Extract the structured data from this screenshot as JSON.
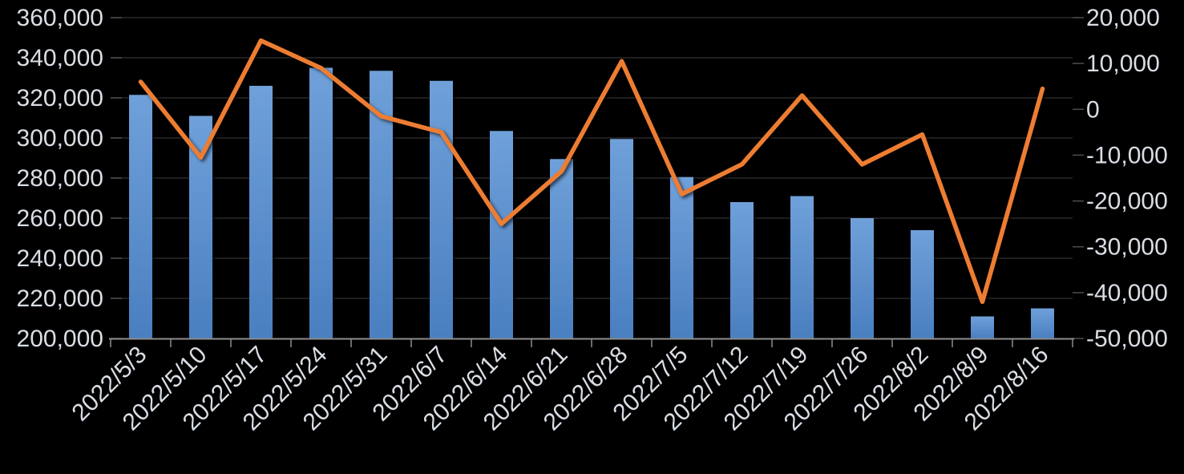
{
  "chart_data": {
    "type": "combo",
    "title": "",
    "background_color": "#000000",
    "text_color": "#D9DEE5",
    "gridline_color": "#292929",
    "axis_line_color": "#8C8C8C",
    "value_tick_color": "#4D4D4D",
    "grid": true,
    "legend": "none",
    "categories": [
      "2022/5/3",
      "2022/5/10",
      "2022/5/17",
      "2022/5/24",
      "2022/5/31",
      "2022/6/7",
      "2022/6/14",
      "2022/6/21",
      "2022/6/28",
      "2022/7/5",
      "2022/7/12",
      "2022/7/19",
      "2022/7/26",
      "2022/8/2",
      "2022/8/9",
      "2022/8/16"
    ],
    "series": [
      {
        "name": "bar-series",
        "type": "bar",
        "axis": "left",
        "color_top": "#6FA0D9",
        "color_bottom": "#4A7FC0",
        "values": [
          321500,
          311000,
          326000,
          335000,
          333500,
          328500,
          303500,
          289500,
          299500,
          280500,
          268000,
          271000,
          260000,
          254000,
          211000,
          215000
        ]
      },
      {
        "name": "line-series",
        "type": "line",
        "axis": "right",
        "color": "#ED7D31",
        "values": [
          6000,
          -10500,
          15000,
          9000,
          -1500,
          -5000,
          -25000,
          -13500,
          10500,
          -18500,
          -12000,
          3000,
          -12000,
          -5500,
          -42000,
          4500
        ]
      }
    ],
    "left_axis": {
      "min": 200000,
      "max": 360000,
      "step": 20000,
      "tick_labels": [
        "200,000",
        "220,000",
        "240,000",
        "260,000",
        "280,000",
        "300,000",
        "320,000",
        "340,000",
        "360,000"
      ]
    },
    "right_axis": {
      "min": -50000,
      "max": 20000,
      "step": 10000,
      "tick_labels": [
        "-50,000",
        "-40,000",
        "-30,000",
        "-20,000",
        "-10,000",
        "0",
        "10,000",
        "20,000"
      ]
    },
    "x_axis": {
      "label_rotation_deg": -45
    }
  }
}
